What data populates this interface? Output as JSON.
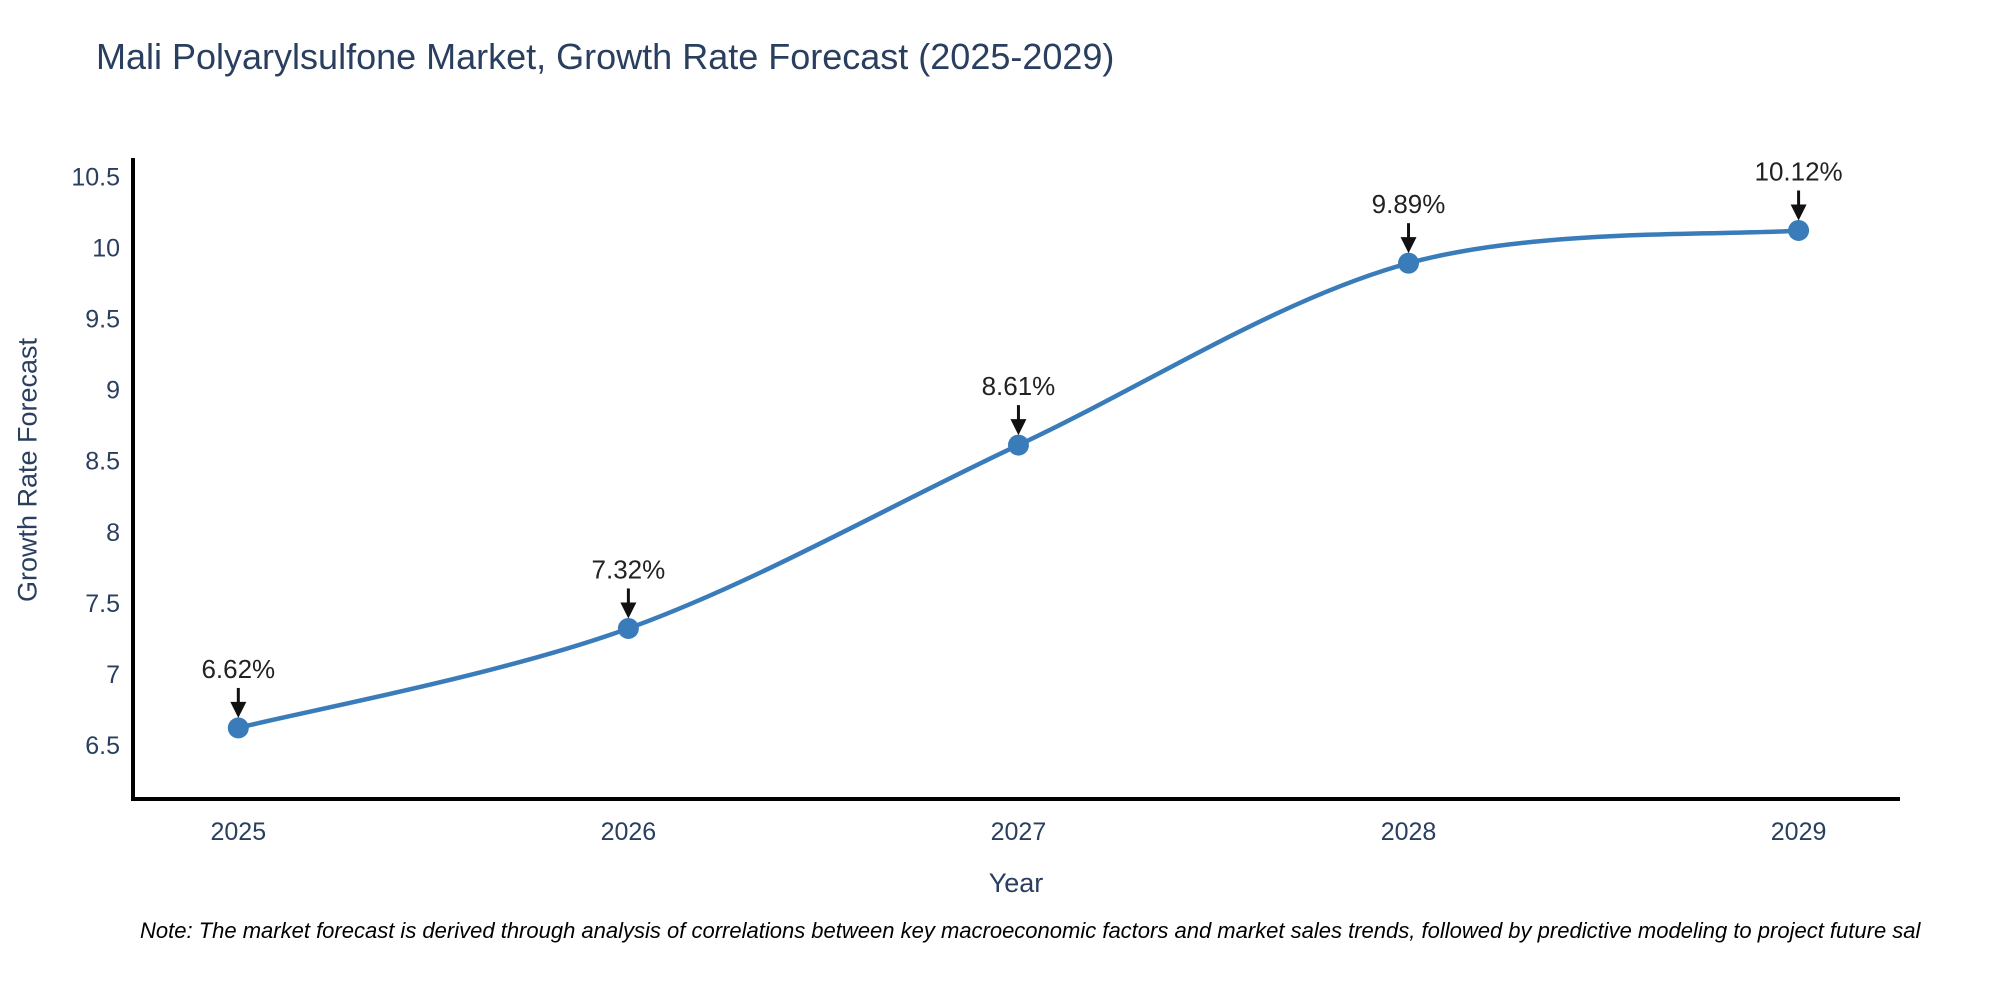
{
  "page": {
    "background": "#ffffff"
  },
  "chart_data": {
    "type": "line",
    "title": "Mali Polyarylsulfone Market, Growth Rate Forecast (2025-2029)",
    "xlabel": "Year",
    "ylabel": "Growth Rate Forecast",
    "x": [
      2025,
      2026,
      2027,
      2028,
      2029
    ],
    "series": [
      {
        "name": "Growth Rate Forecast",
        "values": [
          6.62,
          7.32,
          8.61,
          9.89,
          10.12
        ]
      }
    ],
    "data_labels": [
      "6.62%",
      "7.32%",
      "8.61%",
      "9.89%",
      "10.12%"
    ],
    "xtick_labels": [
      "2025",
      "2026",
      "2027",
      "2028",
      "2029"
    ],
    "ytick_values": [
      6.5,
      7,
      7.5,
      8,
      8.5,
      9,
      9.5,
      10,
      10.5
    ],
    "xlim": [
      2024.73,
      2029.26
    ],
    "ylim": [
      6.12,
      10.63
    ],
    "grid": false,
    "legend": false,
    "line_shape": "spline",
    "marker": "circle",
    "annotations_have_arrows": true,
    "colors": {
      "line": "#3a7cba",
      "marker": "#3a7cba",
      "axis": "#000000",
      "tick_text": "#2a3f5f",
      "annotation_text": "#222222",
      "arrow": "#111111"
    }
  },
  "note": {
    "text": "Note: The market forecast is derived through analysis of correlations between key macroeconomic factors and market sales trends, followed by predictive modeling to project future sal"
  }
}
